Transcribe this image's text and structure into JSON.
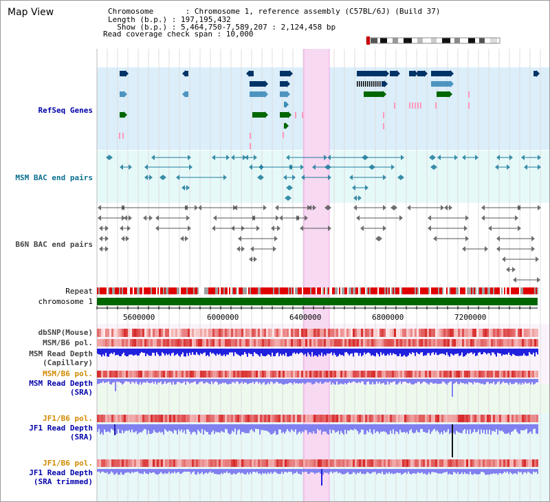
{
  "header": {
    "view_title": "Map View",
    "chromosome_line": "Chromosome       : Chromosome 1, reference assembly (C57BL/6J) (Build 37)",
    "length_line": "Length (b.p.) : 197,195,432",
    "show_line": "  Show (b.p.) : 5,464,750-7,589,207 : 2,124,458 bp",
    "coverage_line": "Read coverage check span : 10,000"
  },
  "tracks": {
    "refseq": {
      "label": "RefSeq Genes",
      "color": "#00a"
    },
    "msm_bac": {
      "label": "MSM BAC end pairs",
      "color": "#0a7090"
    },
    "b6n_bac": {
      "label": "B6N BAC end pairs",
      "color": "#444444"
    },
    "repeat": {
      "label": "Repeat"
    },
    "chromosome": {
      "label": "chromosome 1"
    },
    "dbsnp": {
      "label": "dbSNP(Mouse)"
    },
    "msm_b6_pol_1": {
      "label": "MSM/B6 pol."
    },
    "msm_depth_cap": {
      "label": "MSM Read Depth\n(Capillary)"
    },
    "msm_b6_pol_2": {
      "label": "MSM/B6 pol."
    },
    "msm_depth_sra": {
      "label": "MSM Read Depth\n(SRA)"
    },
    "jf1_b6_pol_1": {
      "label": "JF1/B6 pol."
    },
    "jf1_depth_sra": {
      "label": "JF1 Read Depth\n(SRA)"
    },
    "jf1_b6_pol_2": {
      "label": "JF1/B6 pol."
    },
    "jf1_depth_trim": {
      "label": "JF1 Read Depth\n(SRA trimmed)"
    }
  },
  "axis": {
    "ticks": [
      "5600000",
      "6000000",
      "6400000",
      "6800000",
      "7200000"
    ],
    "start_bp": 5464750,
    "end_bp": 7589207
  },
  "colors": {
    "refseq_bg": "#dbeefa",
    "bac_bg": "#e6f9f9",
    "highlight": "#f7d9f2",
    "gene_navy": "#003366",
    "gene_light": "#4d94c0",
    "gene_green": "#006600",
    "gene_pink": "#ff99bb",
    "chrom_green": "#006600",
    "depth_dark": "#2020dd",
    "depth_light": "#8080f0"
  }
}
